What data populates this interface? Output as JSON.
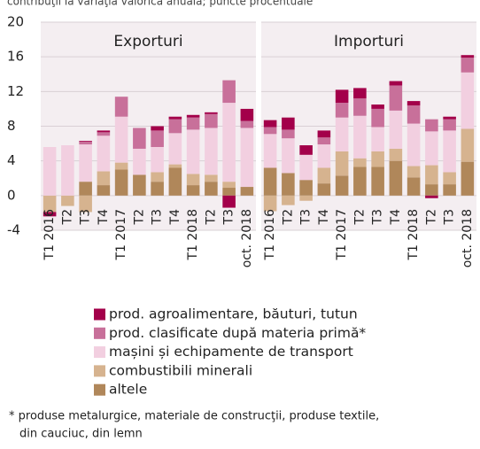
{
  "chart_data": {
    "type": "bar",
    "stacked": true,
    "subtitle": "contribuţii la variaţia valorică anuală; puncte procentuale",
    "ylim": [
      -4,
      20
    ],
    "yticks": [
      -4,
      0,
      4,
      8,
      12,
      16,
      20
    ],
    "grid": true,
    "panels": [
      {
        "title": "Exporturi",
        "categories": [
          "T1 2016",
          "T2",
          "T3",
          "T4",
          "T1 2017",
          "T2",
          "T3",
          "T4",
          "T1 2018",
          "T2",
          "T3",
          "oct. 2018"
        ]
      },
      {
        "title": "Importuri",
        "categories": [
          "T1 2016",
          "T2",
          "T3",
          "T4",
          "T1 2017",
          "T2",
          "T3",
          "T4",
          "T1 2018",
          "T2",
          "T3",
          "oct. 2018"
        ]
      }
    ],
    "series": [
      {
        "name": "altele",
        "color": "#b0875a",
        "values": [
          [
            0,
            0,
            1.6,
            1.2,
            3.0,
            2.4,
            1.6,
            3.2,
            1.2,
            1.6,
            0.9,
            1.0
          ],
          [
            3.2,
            2.6,
            1.8,
            1.4,
            2.3,
            3.3,
            3.3,
            4.0,
            2.1,
            1.3,
            1.3,
            3.9
          ]
        ]
      },
      {
        "name": "combustibili minerali",
        "color": "#d6b38f",
        "values": [
          [
            -1.9,
            -1.2,
            -1.9,
            1.6,
            0.8,
            0,
            1.1,
            0.4,
            1.3,
            0.8,
            0.7,
            0
          ],
          [
            -1.8,
            -1.1,
            -0.6,
            1.8,
            2.8,
            1.0,
            1.8,
            1.4,
            1.3,
            2.2,
            1.4,
            3.8
          ]
        ]
      },
      {
        "name": "mașini și echipamente de transport",
        "color": "#f2cfe0",
        "values": [
          [
            5.6,
            5.8,
            4.3,
            4.1,
            5.3,
            3.0,
            2.9,
            3.6,
            5.1,
            5.4,
            9.1,
            6.8
          ],
          [
            3.9,
            4.0,
            2.9,
            2.7,
            3.9,
            4.9,
            2.8,
            4.4,
            4.9,
            3.9,
            4.8,
            6.5
          ]
        ]
      },
      {
        "name": "prod. clasificate după materia primă*",
        "color": "#c8709a",
        "values": [
          [
            0,
            0,
            0.3,
            0.4,
            2.3,
            2.4,
            1.9,
            1.6,
            1.4,
            1.6,
            2.6,
            0.8
          ],
          [
            0.8,
            1.0,
            0,
            0.8,
            1.7,
            2.0,
            2.1,
            2.9,
            2.1,
            1.4,
            1.3,
            1.7
          ]
        ]
      },
      {
        "name": "prod. agroalimentare, băuturi, tutun",
        "color": "#a3004a",
        "values": [
          [
            -0.5,
            0,
            0.1,
            0.2,
            0,
            0,
            0.5,
            0.3,
            0.3,
            0.2,
            -1.4,
            1.4
          ],
          [
            0.8,
            1.4,
            1.1,
            0.8,
            1.5,
            1.2,
            0.5,
            0.5,
            0.5,
            -0.3,
            0.3,
            0.3
          ]
        ]
      }
    ],
    "footnote": [
      "* produse metalurgice, materiale de construcţii, produse textile,",
      "din cauciuc, din lemn"
    ]
  }
}
